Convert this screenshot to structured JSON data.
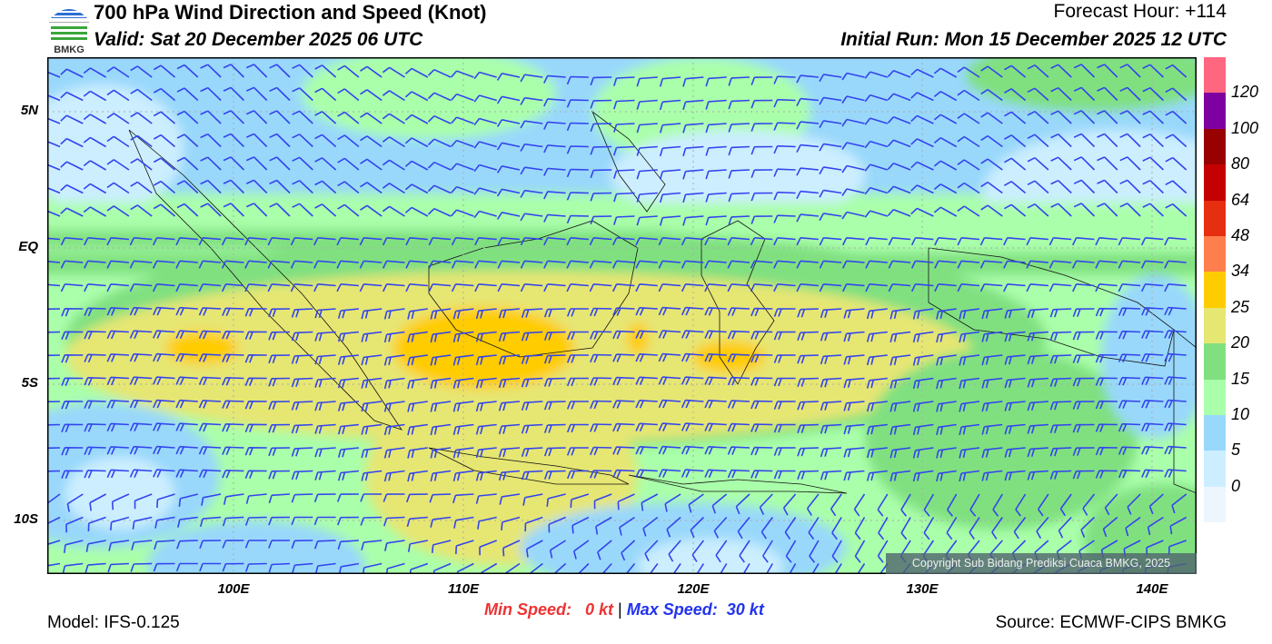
{
  "header": {
    "title": "700 hPa Wind Direction and Speed (Knot)",
    "valid": "Valid: Sat 20 December 2025 06 UTC",
    "forecast_hour": "Forecast Hour: +114",
    "initial_run": "Initial Run: Mon 15 December 2025 12 UTC",
    "logo_text": "BMKG"
  },
  "map": {
    "lat_labels": [
      "5N",
      "EQ",
      "5S",
      "10S"
    ],
    "lon_labels": [
      "100E",
      "110E",
      "120E",
      "130E",
      "140E"
    ],
    "copyright": "Copyright Sub Bidang Prediksi Cuaca BMKG, 2025",
    "barb_color": "#3344ee"
  },
  "legend": {
    "labels": [
      "120",
      "100",
      "80",
      "64",
      "48",
      "34",
      "25",
      "20",
      "15",
      "10",
      "5",
      "0"
    ],
    "colors_top_to_bottom": [
      "#ff6680",
      "#7f00a0",
      "#990000",
      "#c40000",
      "#e62e10",
      "#ff7f4c",
      "#ffcc00",
      "#e6e673",
      "#80e080",
      "#aaffaa",
      "#99d8fb",
      "#cceeff",
      "#eef6fd"
    ]
  },
  "footer": {
    "model": "Model: IFS-0.125",
    "min_speed": "Min Speed:   0 kt",
    "separator": "|",
    "max_speed": "Max Speed:  30 kt",
    "source": "Source: ECMWF-CIPS BMKG"
  }
}
